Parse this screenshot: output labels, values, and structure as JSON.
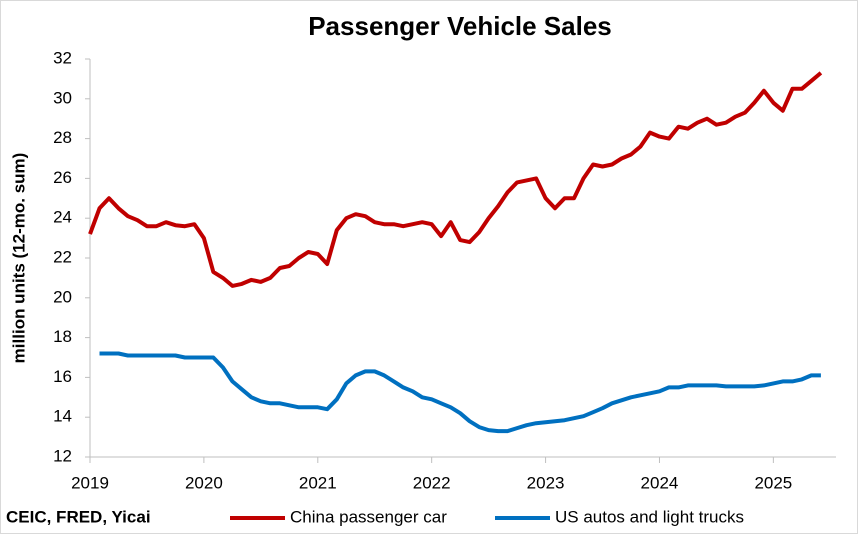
{
  "chart_data": {
    "type": "line",
    "title": "Passenger Vehicle Sales",
    "y_label": "million units (12-mo. sum)",
    "source": "CEIC, FRED, Yicai",
    "x": [
      2019,
      2019.083,
      2019.167,
      2019.25,
      2019.333,
      2019.417,
      2019.5,
      2019.583,
      2019.667,
      2019.75,
      2019.833,
      2019.917,
      2020,
      2020.083,
      2020.167,
      2020.25,
      2020.333,
      2020.417,
      2020.5,
      2020.583,
      2020.667,
      2020.75,
      2020.833,
      2020.917,
      2021,
      2021.083,
      2021.167,
      2021.25,
      2021.333,
      2021.417,
      2021.5,
      2021.583,
      2021.667,
      2021.75,
      2021.833,
      2021.917,
      2022,
      2022.083,
      2022.167,
      2022.25,
      2022.333,
      2022.417,
      2022.5,
      2022.583,
      2022.667,
      2022.75,
      2022.833,
      2022.917,
      2023,
      2023.083,
      2023.167,
      2023.25,
      2023.333,
      2023.417,
      2023.5,
      2023.583,
      2023.667,
      2023.75,
      2023.833,
      2023.917,
      2024,
      2024.083,
      2024.167,
      2024.25,
      2024.333,
      2024.417,
      2024.5,
      2024.583,
      2024.667,
      2024.75,
      2024.833,
      2024.917,
      2025,
      2025.083,
      2025.167,
      2025.25,
      2025.333,
      2025.417
    ],
    "series": [
      {
        "name": "China passenger car",
        "color": "#c00000",
        "values": [
          23.2,
          24.5,
          25.0,
          24.5,
          24.1,
          23.9,
          23.6,
          23.6,
          23.8,
          23.65,
          23.6,
          23.7,
          23.0,
          21.3,
          21.0,
          20.6,
          20.7,
          20.9,
          20.8,
          21.0,
          21.5,
          21.6,
          22.0,
          22.3,
          22.2,
          21.7,
          23.4,
          24.0,
          24.2,
          24.1,
          23.8,
          23.7,
          23.7,
          23.6,
          23.7,
          23.8,
          23.7,
          23.1,
          23.8,
          22.9,
          22.8,
          23.3,
          24.0,
          24.6,
          25.3,
          25.8,
          25.9,
          26.0,
          25.0,
          24.5,
          25.0,
          25.0,
          26.0,
          26.7,
          26.6,
          26.7,
          27.0,
          27.2,
          27.6,
          28.3,
          28.1,
          28.0,
          28.6,
          28.5,
          28.8,
          29.0,
          28.7,
          28.8,
          29.1,
          29.3,
          29.8,
          30.4,
          29.8,
          29.4,
          30.5,
          30.5,
          30.9,
          31.3
        ]
      },
      {
        "name": "US autos and light trucks",
        "color": "#0070c0",
        "values": [
          null,
          17.2,
          17.2,
          17.2,
          17.1,
          17.1,
          17.1,
          17.1,
          17.1,
          17.1,
          17.0,
          17.0,
          17.0,
          17.0,
          16.5,
          15.8,
          15.4,
          15.0,
          14.8,
          14.7,
          14.7,
          14.6,
          14.5,
          14.5,
          14.5,
          14.4,
          14.9,
          15.7,
          16.1,
          16.3,
          16.3,
          16.1,
          15.8,
          15.5,
          15.3,
          15.0,
          14.9,
          14.7,
          14.5,
          14.2,
          13.8,
          13.5,
          13.35,
          13.3,
          13.3,
          13.45,
          13.6,
          13.7,
          13.75,
          13.8,
          13.85,
          13.95,
          14.05,
          14.25,
          14.45,
          14.7,
          14.85,
          15.0,
          15.1,
          15.2,
          15.3,
          15.5,
          15.5,
          15.6,
          15.6,
          15.6,
          15.6,
          15.55,
          15.55,
          15.55,
          15.55,
          15.6,
          15.7,
          15.8,
          15.8,
          15.9,
          16.1,
          16.1
        ]
      }
    ],
    "xlim": [
      2019,
      2025.55
    ],
    "xticks": [
      2019,
      2020,
      2021,
      2022,
      2023,
      2024,
      2025
    ],
    "ylim": [
      12,
      32
    ],
    "yticks": [
      12,
      14,
      16,
      18,
      20,
      22,
      24,
      26,
      28,
      30,
      32
    ],
    "grid": false,
    "legend": "bottom"
  }
}
